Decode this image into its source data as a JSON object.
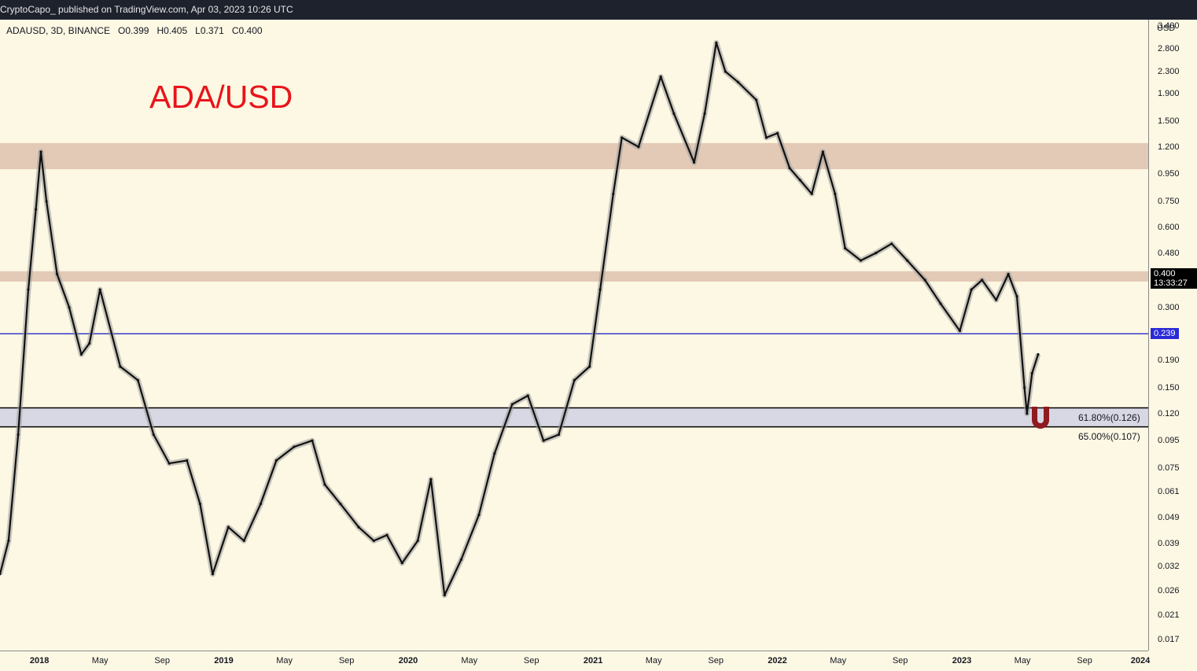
{
  "header": {
    "publisher_line": "CryptoCapo_ published on TradingView.com, Apr 03, 2023 10:26 UTC"
  },
  "legend": {
    "symbol": "ADAUSD, 3D, BINANCE",
    "open": "O0.399",
    "high": "H0.405",
    "low": "L0.371",
    "close": "C0.400"
  },
  "annotation_title": "ADA/USD",
  "price_axis": {
    "currency": "USD",
    "ticks": [
      "3.400",
      "2.800",
      "2.300",
      "1.900",
      "1.500",
      "1.200",
      "0.950",
      "0.750",
      "0.600",
      "0.480",
      "0.300",
      "0.190",
      "0.150",
      "0.120",
      "0.095",
      "0.075",
      "0.061",
      "0.049",
      "0.039",
      "0.032",
      "0.026",
      "0.021",
      "0.017"
    ],
    "last_price": "0.400",
    "countdown": "13:33:27",
    "hline_label": "0.239"
  },
  "time_axis": {
    "ticks": [
      "2018",
      "May",
      "Sep",
      "2019",
      "May",
      "Sep",
      "2020",
      "May",
      "Sep",
      "2021",
      "May",
      "Sep",
      "2022",
      "May",
      "Sep",
      "2023",
      "May",
      "Sep",
      "2024"
    ]
  },
  "fib_labels": {
    "upper": "61.80%(0.126)",
    "lower": "65.00%(0.107)"
  },
  "colors": {
    "background": "#fdf8e3",
    "resistance_zone": "#e2c7b3",
    "support_zone": "#d7d8e4",
    "horizontal_line": "#2828c8",
    "last_price_badge": "#000000",
    "hline_badge": "#2a2ad8",
    "title": "#e8141b",
    "magnet_icon": "#8f1a1f"
  },
  "icons": {
    "magnet": "magnet-icon"
  },
  "chart_data": {
    "type": "line",
    "title": "",
    "subtitle": "",
    "xlabel": "",
    "ylabel": "",
    "y_scale": "log",
    "ylim": [
      0.0155,
      3.6
    ],
    "xlim": [
      "2017-10-15",
      "2024-01-05"
    ],
    "series": [
      {
        "name": "",
        "points": [
          [
            "2017-10-15",
            0.03
          ],
          [
            "2017-11-01",
            0.04
          ],
          [
            "2017-11-20",
            0.1
          ],
          [
            "2017-12-10",
            0.35
          ],
          [
            "2017-12-25",
            0.7
          ],
          [
            "2018-01-04",
            1.15
          ],
          [
            "2018-01-15",
            0.75
          ],
          [
            "2018-02-05",
            0.4
          ],
          [
            "2018-03-01",
            0.3
          ],
          [
            "2018-03-25",
            0.2
          ],
          [
            "2018-04-10",
            0.22
          ],
          [
            "2018-05-01",
            0.35
          ],
          [
            "2018-06-10",
            0.18
          ],
          [
            "2018-07-15",
            0.16
          ],
          [
            "2018-08-15",
            0.1
          ],
          [
            "2018-09-15",
            0.078
          ],
          [
            "2018-10-20",
            0.08
          ],
          [
            "2018-11-15",
            0.055
          ],
          [
            "2018-12-10",
            0.03
          ],
          [
            "2019-01-10",
            0.045
          ],
          [
            "2019-02-10",
            0.04
          ],
          [
            "2019-03-15",
            0.055
          ],
          [
            "2019-04-15",
            0.08
          ],
          [
            "2019-05-20",
            0.09
          ],
          [
            "2019-06-25",
            0.095
          ],
          [
            "2019-07-20",
            0.065
          ],
          [
            "2019-08-20",
            0.055
          ],
          [
            "2019-09-25",
            0.045
          ],
          [
            "2019-10-25",
            0.04
          ],
          [
            "2019-11-20",
            0.042
          ],
          [
            "2019-12-20",
            0.033
          ],
          [
            "2020-01-20",
            0.04
          ],
          [
            "2020-02-15",
            0.068
          ],
          [
            "2020-03-13",
            0.025
          ],
          [
            "2020-04-15",
            0.034
          ],
          [
            "2020-05-20",
            0.05
          ],
          [
            "2020-06-20",
            0.085
          ],
          [
            "2020-07-25",
            0.13
          ],
          [
            "2020-08-25",
            0.14
          ],
          [
            "2020-09-25",
            0.095
          ],
          [
            "2020-10-25",
            0.1
          ],
          [
            "2020-11-25",
            0.16
          ],
          [
            "2020-12-25",
            0.18
          ],
          [
            "2021-01-15",
            0.35
          ],
          [
            "2021-02-10",
            0.8
          ],
          [
            "2021-02-27",
            1.3
          ],
          [
            "2021-04-01",
            1.2
          ],
          [
            "2021-05-15",
            2.2
          ],
          [
            "2021-06-10",
            1.6
          ],
          [
            "2021-07-20",
            1.05
          ],
          [
            "2021-08-10",
            1.6
          ],
          [
            "2021-09-02",
            2.95
          ],
          [
            "2021-09-20",
            2.3
          ],
          [
            "2021-10-15",
            2.1
          ],
          [
            "2021-11-20",
            1.8
          ],
          [
            "2021-12-10",
            1.3
          ],
          [
            "2022-01-01",
            1.35
          ],
          [
            "2022-01-25",
            1.0
          ],
          [
            "2022-02-15",
            0.9
          ],
          [
            "2022-03-10",
            0.8
          ],
          [
            "2022-04-01",
            1.15
          ],
          [
            "2022-04-25",
            0.8
          ],
          [
            "2022-05-15",
            0.5
          ],
          [
            "2022-06-15",
            0.45
          ],
          [
            "2022-07-15",
            0.48
          ],
          [
            "2022-08-15",
            0.52
          ],
          [
            "2022-09-15",
            0.45
          ],
          [
            "2022-10-20",
            0.38
          ],
          [
            "2022-11-20",
            0.31
          ],
          [
            "2022-12-28",
            0.245
          ],
          [
            "2023-01-20",
            0.35
          ],
          [
            "2023-02-10",
            0.38
          ],
          [
            "2023-03-10",
            0.32
          ],
          [
            "2023-04-03",
            0.4
          ],
          [
            "2023-04-20",
            0.33
          ],
          [
            "2023-05-05",
            0.15
          ],
          [
            "2023-05-10",
            0.12
          ],
          [
            "2023-05-20",
            0.17
          ],
          [
            "2023-06-01",
            0.2
          ]
        ]
      }
    ],
    "horizontal_line": 0.239,
    "zones": [
      {
        "type": "resistance",
        "from": 0.99,
        "to": 1.24
      },
      {
        "type": "resistance",
        "from": 0.375,
        "to": 0.41
      },
      {
        "type": "support",
        "from": 0.107,
        "to": 0.126
      }
    ],
    "fib_levels": [
      {
        "label": "61.80%(0.126)",
        "value": 0.126
      },
      {
        "label": "65.00%(0.107)",
        "value": 0.107
      }
    ],
    "grid": false,
    "legend": "top-left"
  }
}
